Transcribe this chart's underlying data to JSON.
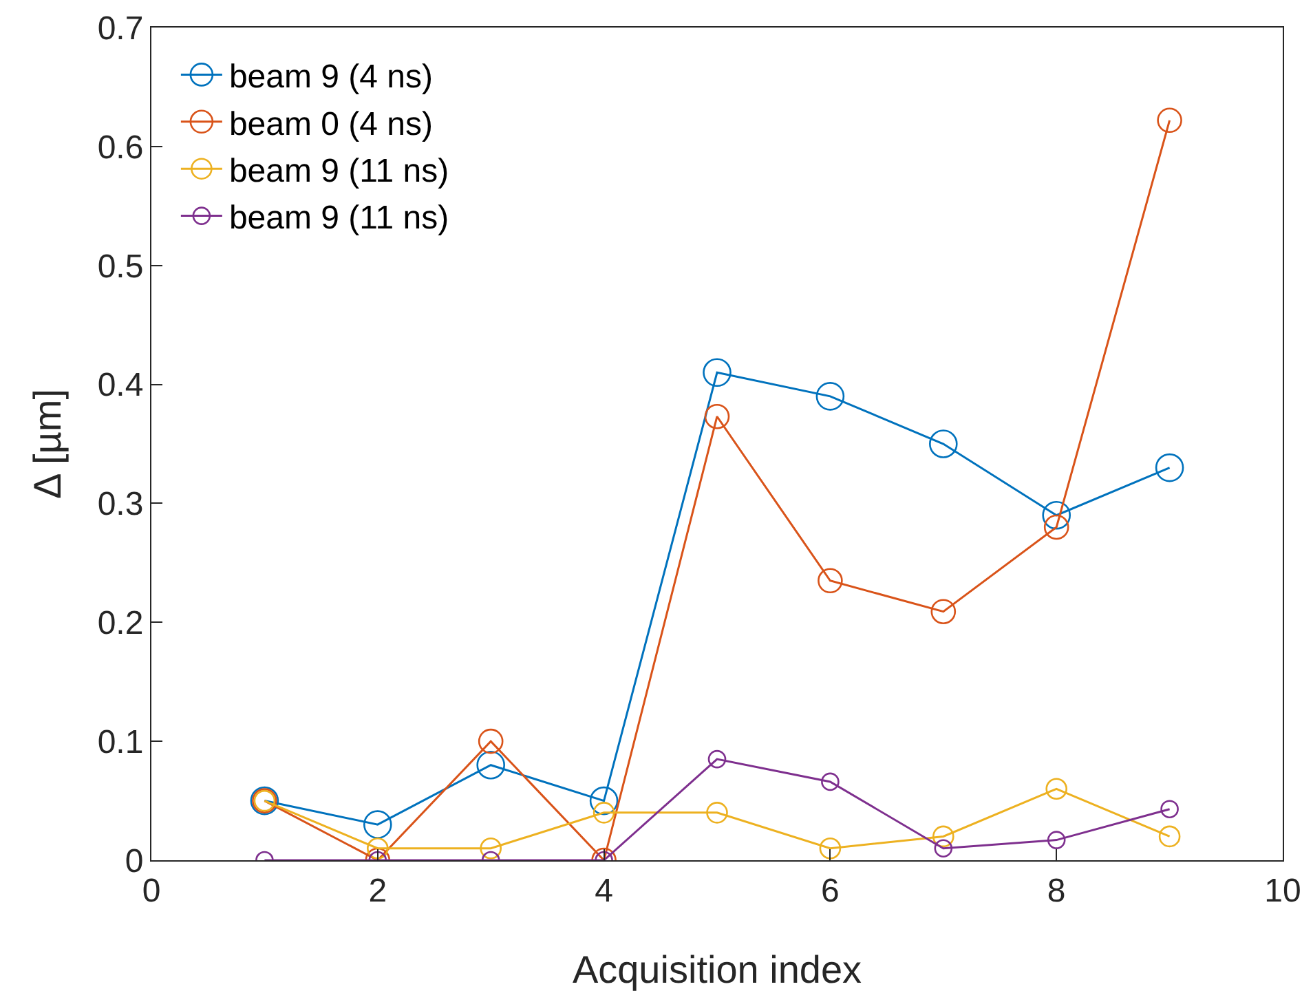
{
  "chart_data": {
    "type": "line",
    "xlabel": "Acquisition index",
    "ylabel": "Δ [µm]",
    "x": [
      1,
      2,
      3,
      4,
      5,
      6,
      7,
      8,
      9
    ],
    "xlim": [
      0,
      10
    ],
    "xticks": [
      0,
      2,
      4,
      6,
      8,
      10
    ],
    "ylim": [
      0,
      0.7
    ],
    "yticks": [
      0,
      0.1,
      0.2,
      0.3,
      0.4,
      0.5,
      0.6,
      0.7
    ],
    "grid": false,
    "legend": "top left",
    "marker": "circle",
    "line_style": "solid",
    "series": [
      {
        "name": "beam 9 (4 ns)",
        "color": "#0072bd",
        "values": [
          0.05,
          0.03,
          0.08,
          0.05,
          0.41,
          0.39,
          0.35,
          0.29,
          0.33
        ]
      },
      {
        "name": "beam 0 (4 ns)",
        "color": "#d95319",
        "values": [
          0.05,
          0,
          0.1,
          0,
          0.373,
          0.235,
          0.209,
          0.28,
          0.622
        ]
      },
      {
        "name": "beam 9 (11 ns)",
        "color": "#edb120",
        "values": [
          0.05,
          0.01,
          0.01,
          0.04,
          0.04,
          0.01,
          0.02,
          0.06,
          0.02
        ]
      },
      {
        "name": "beam 9 (11 ns)",
        "color": "#7e2f8e",
        "values": [
          0,
          0,
          0,
          0,
          0.085,
          0.066,
          0.01,
          0.017,
          0.043
        ]
      }
    ]
  }
}
